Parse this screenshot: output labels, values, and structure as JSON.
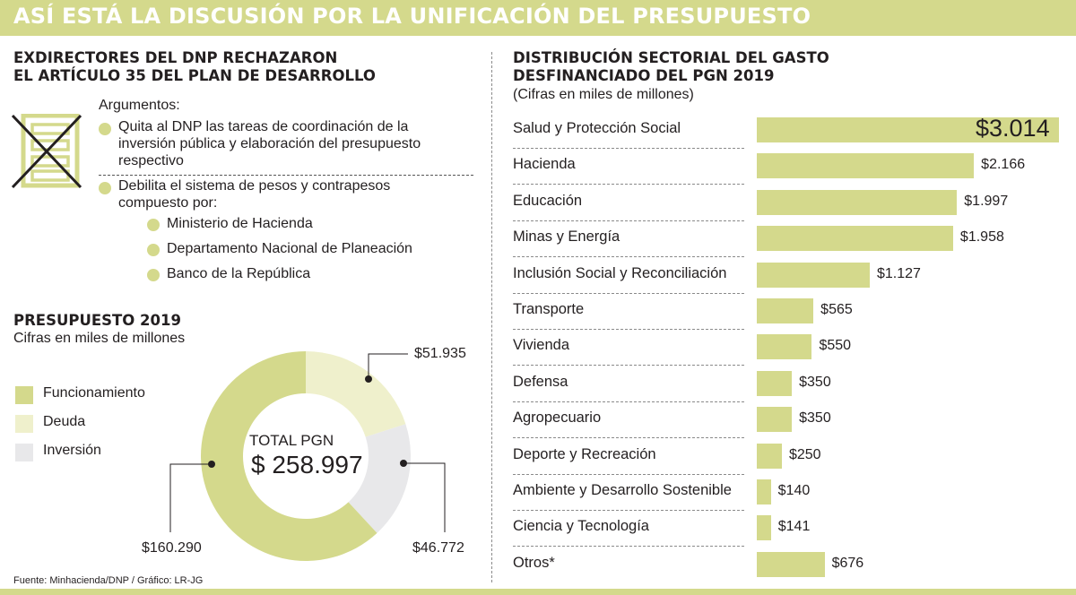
{
  "header": {
    "title": "ASÍ ESTÁ LA DISCUSIÓN POR LA UNIFICACIÓN DEL PRESUPUESTO"
  },
  "left_top": {
    "title_line1": "EXDIRECTORES DEL DNP RECHAZARON",
    "title_line2": "EL ARTÍCULO 35 DEL PLAN DE DESARROLLO",
    "args_title": "Argumentos:",
    "arg1_line1": "Quita al DNP las tareas de coordinación de la",
    "arg1_line2": "inversión pública y elaboración del presupuesto",
    "arg1_line3": "respectivo",
    "arg2_line1": "Debilita el sistema de pesos y contrapesos",
    "arg2_line2": "compuesto por:",
    "entities": [
      "Ministerio de Hacienda",
      "Departamento Nacional de Planeación",
      "Banco de la República"
    ]
  },
  "colors": {
    "accent": "#d4d98c",
    "light": "#eff0cc",
    "gray": "#e8e8ea",
    "text": "#231f20"
  },
  "chart_data": [
    {
      "type": "pie",
      "title": "PRESUPUESTO 2019",
      "subtitle": "Cifras en miles de millones",
      "center_label": "TOTAL PGN",
      "center_value": "$ 258.997",
      "total": 258997,
      "categories": [
        "Funcionamiento",
        "Deuda",
        "Inversión"
      ],
      "values": [
        160290,
        51935,
        46772
      ],
      "value_labels": [
        "$160.290",
        "$51.935",
        "$46.772"
      ],
      "colors": [
        "#d4d98c",
        "#eff0cc",
        "#e8e8ea"
      ]
    },
    {
      "type": "bar",
      "orientation": "horizontal",
      "title_line1": "DISTRIBUCIÓN SECTORIAL DEL GASTO",
      "title_line2": "DESFINANCIADO DEL PGN 2019",
      "subtitle": "(Cifras en miles de millones)",
      "categories": [
        "Salud y Protección Social",
        "Hacienda",
        "Educación",
        "Minas y Energía",
        "Inclusión Social y Reconciliación",
        "Transporte",
        "Vivienda",
        "Defensa",
        "Agropecuario",
        "Deporte y Recreación",
        "Ambiente y Desarrollo Sostenible",
        "Ciencia y Tecnología",
        "Otros*"
      ],
      "values": [
        3014,
        2166,
        1997,
        1958,
        1127,
        565,
        550,
        350,
        350,
        250,
        140,
        141,
        676
      ],
      "value_labels": [
        "$3.014",
        "$2.166",
        "$1.997",
        "$1.958",
        "$1.127",
        "$565",
        "$550",
        "$350",
        "$350",
        "$250",
        "$140",
        "$141",
        "$676"
      ],
      "xlim": [
        0,
        3014
      ]
    }
  ],
  "source": "Fuente: Minhacienda/DNP / Gráfico: LR-JG"
}
